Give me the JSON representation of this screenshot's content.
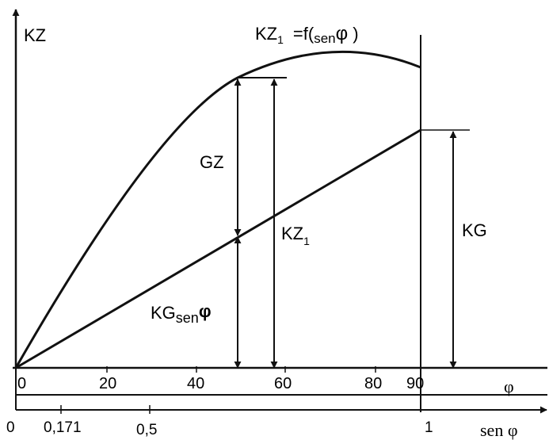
{
  "labels": {
    "y_axis": "KZ",
    "curve_main": "KZ",
    "curve_sub": "1",
    "curve_eq": "=f(",
    "curve_sen": "sen",
    "curve_phi": "φ",
    "curve_close": ")",
    "gz": "GZ",
    "kz1_main": "KZ",
    "kz1_sub": "1",
    "kg": "KG",
    "kgsen_main": "KG",
    "kgsen_sub": "sen",
    "kgsen_phi": "φ",
    "phi_axis": "φ",
    "sen_axis": "sen φ"
  },
  "axis_phi": {
    "ticks": [
      "0",
      "20",
      "40",
      "60",
      "80",
      "90"
    ]
  },
  "axis_sen": {
    "ticks": [
      "0",
      "0,171",
      "0,5",
      "1"
    ]
  }
}
